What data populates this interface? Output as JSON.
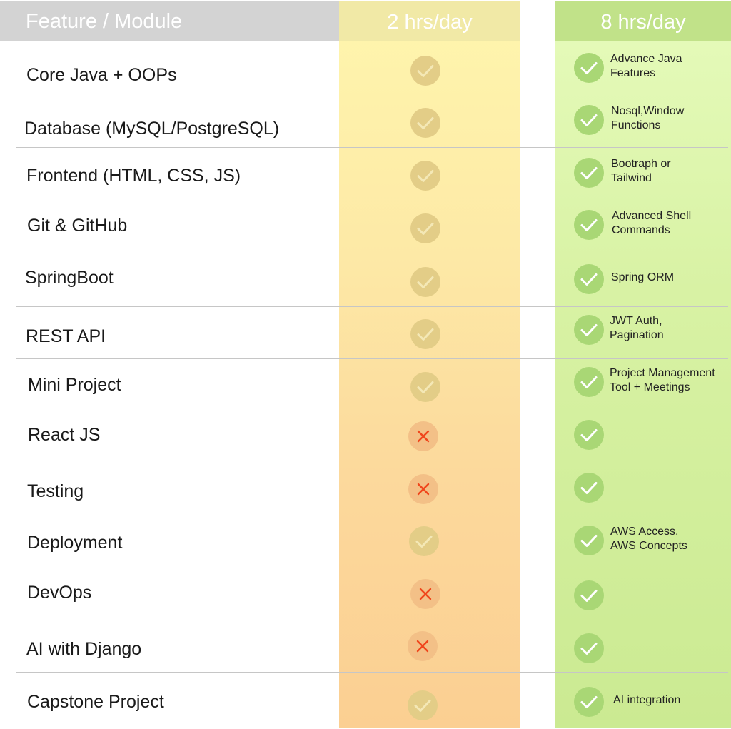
{
  "header": {
    "feature_label": "Feature / Module",
    "col_2h_label": "2 hrs/day",
    "col_8h_label": "8 hrs/day"
  },
  "rows": [
    {
      "module": "Core Java + OOPs",
      "plan_2h": "yes",
      "plan_8h": "yes",
      "note_8h": "Advance Java\nFeatures"
    },
    {
      "module": "Database (MySQL/PostgreSQL)",
      "plan_2h": "yes",
      "plan_8h": "yes",
      "note_8h": "Nosql,Window\nFunctions"
    },
    {
      "module": "Frontend (HTML, CSS, JS)",
      "plan_2h": "yes",
      "plan_8h": "yes",
      "note_8h": "Bootraph or\nTailwind"
    },
    {
      "module": "Git & GitHub",
      "plan_2h": "yes",
      "plan_8h": "yes",
      "note_8h": "Advanced Shell\nCommands"
    },
    {
      "module": "SpringBoot",
      "plan_2h": "yes",
      "plan_8h": "yes",
      "note_8h": "Spring ORM"
    },
    {
      "module": "REST API",
      "plan_2h": "yes",
      "plan_8h": "yes",
      "note_8h": "JWT Auth,\nPagination"
    },
    {
      "module": "Mini Project",
      "plan_2h": "yes",
      "plan_8h": "yes",
      "note_8h": "Project Management\nTool + Meetings"
    },
    {
      "module": "React JS",
      "plan_2h": "no",
      "plan_8h": "yes",
      "note_8h": ""
    },
    {
      "module": "Testing",
      "plan_2h": "no",
      "plan_8h": "yes",
      "note_8h": ""
    },
    {
      "module": "Deployment",
      "plan_2h": "yes",
      "plan_8h": "yes",
      "note_8h": "AWS Access,\nAWS Concepts"
    },
    {
      "module": "DevOps",
      "plan_2h": "no",
      "plan_8h": "yes",
      "note_8h": ""
    },
    {
      "module": "AI with Django",
      "plan_2h": "no",
      "plan_8h": "yes",
      "note_8h": ""
    },
    {
      "module": "Capstone Project",
      "plan_2h": "yes",
      "plan_8h": "yes",
      "note_8h": "AI integration"
    }
  ],
  "colors": {
    "check_2h": "#e3cd87",
    "cross_2h": "#f3c087",
    "cross_mark": "#f0461c",
    "check_8h": "#a9d775"
  },
  "icons": {
    "yes": "check-icon",
    "no": "cross-icon"
  }
}
